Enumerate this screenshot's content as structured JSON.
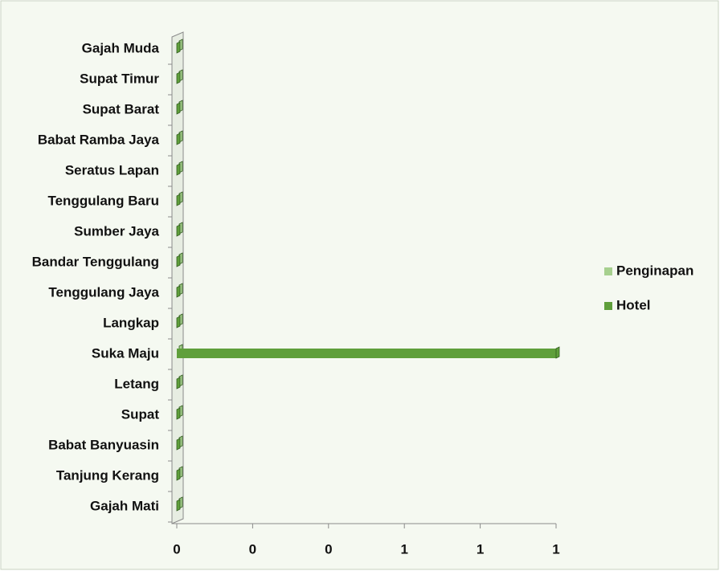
{
  "chart_data": {
    "type": "bar",
    "orientation": "horizontal",
    "categories": [
      "Gajah Mati",
      "Tanjung Kerang",
      "Babat Banyuasin",
      "Supat",
      "Letang",
      "Suka Maju",
      "Langkap",
      "Tenggulang Jaya",
      "Bandar Tenggulang",
      "Sumber Jaya",
      "Tenggulang Baru",
      "Seratus Lapan",
      "Babat Ramba Jaya",
      "Supat Barat",
      "Supat Timur",
      "Gajah Muda"
    ],
    "series": [
      {
        "name": "Penginapan",
        "color": "#a6d08e",
        "values": [
          0,
          0,
          0,
          0,
          0,
          0,
          0,
          0,
          0,
          0,
          0,
          0,
          0,
          0,
          0,
          0
        ]
      },
      {
        "name": "Hotel",
        "color": "#5f9f3b",
        "values": [
          0,
          0,
          0,
          0,
          0,
          1,
          0,
          0,
          0,
          0,
          0,
          0,
          0,
          0,
          0,
          0
        ]
      }
    ],
    "xlim": [
      0,
      1
    ],
    "xticks": [
      0,
      {
        "value": 0.2,
        "label": "0"
      },
      {
        "value": 0.4,
        "label": "0"
      },
      {
        "value": 0.6,
        "label": "1"
      },
      {
        "value": 0.8,
        "label": "1"
      },
      1
    ],
    "legend": "right"
  }
}
